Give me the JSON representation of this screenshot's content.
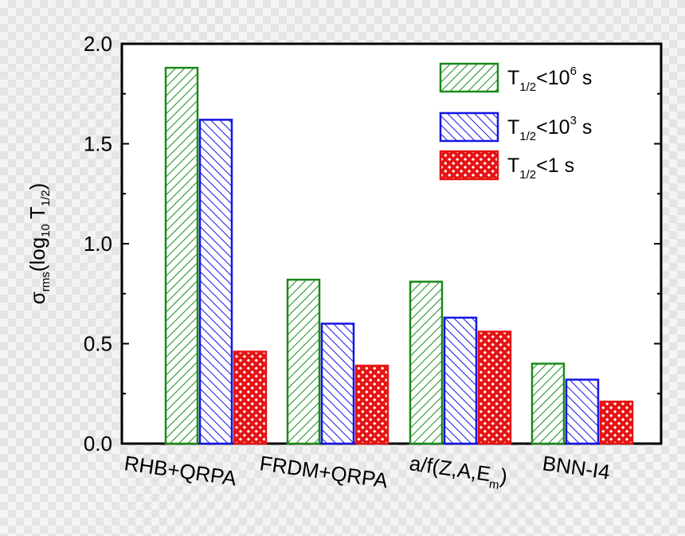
{
  "chart_data": {
    "type": "bar",
    "categories": [
      "RHB+QRPA",
      "FRDM+QRPA",
      "a/f(Z,A,E",
      "BNN-I4"
    ],
    "categories_sub": [
      "",
      "",
      "m",
      ""
    ],
    "categories_suffix": [
      "",
      "",
      ")",
      ""
    ],
    "series": [
      {
        "name_main": "T",
        "name_sub": "1/2",
        "name_mid": "<10",
        "name_sup": "6",
        "name_end": " s",
        "color": "#1a8a1a",
        "pattern": "hatch-down",
        "values": [
          1.88,
          0.82,
          0.81,
          0.4
        ]
      },
      {
        "name_main": "T",
        "name_sub": "1/2",
        "name_mid": "<10",
        "name_sup": "3",
        "name_end": " s",
        "color": "#1414e6",
        "pattern": "hatch-up",
        "values": [
          1.62,
          0.6,
          0.63,
          0.32
        ]
      },
      {
        "name_main": "T",
        "name_sub": "1/2",
        "name_mid": "<1 s",
        "name_sup": "",
        "name_end": "",
        "color": "#e61414",
        "pattern": "crosshatch",
        "values": [
          0.46,
          0.39,
          0.56,
          0.21
        ]
      }
    ],
    "ylabel": {
      "sigma": "σ",
      "rms": "rms",
      "open": "(log",
      "ten": "10",
      "T": "T",
      "half": "1/2",
      "close": ")"
    },
    "yticks": [
      "0.0",
      "0.5",
      "1.0",
      "1.5",
      "2.0"
    ],
    "ylim": [
      0,
      2.0
    ],
    "legend_position": "top-right",
    "grid": false
  }
}
